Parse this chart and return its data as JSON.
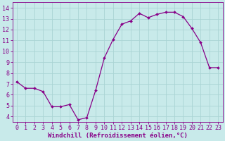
{
  "x": [
    0,
    1,
    2,
    3,
    4,
    5,
    6,
    7,
    8,
    9,
    10,
    11,
    12,
    13,
    14,
    15,
    16,
    17,
    18,
    19,
    20,
    21,
    22,
    23
  ],
  "y": [
    7.2,
    6.6,
    6.6,
    6.3,
    4.9,
    4.9,
    5.1,
    3.7,
    3.9,
    6.4,
    9.4,
    11.1,
    12.5,
    12.8,
    13.5,
    13.1,
    13.4,
    13.6,
    13.6,
    13.2,
    12.1,
    10.8,
    8.5,
    8.5
  ],
  "line_color": "#880088",
  "marker": "D",
  "marker_size": 2,
  "line_width": 0.9,
  "bg_color": "#c8eaea",
  "grid_color": "#aad4d4",
  "xlabel": "Windchill (Refroidissement éolien,°C)",
  "tick_color": "#880088",
  "xlim": [
    -0.5,
    23.5
  ],
  "ylim": [
    3.5,
    14.5
  ],
  "yticks": [
    4,
    5,
    6,
    7,
    8,
    9,
    10,
    11,
    12,
    13,
    14
  ],
  "xticks": [
    0,
    1,
    2,
    3,
    4,
    5,
    6,
    7,
    8,
    9,
    10,
    11,
    12,
    13,
    14,
    15,
    16,
    17,
    18,
    19,
    20,
    21,
    22,
    23
  ],
  "font_size_ticks": 6,
  "font_size_xlabel": 6.5
}
